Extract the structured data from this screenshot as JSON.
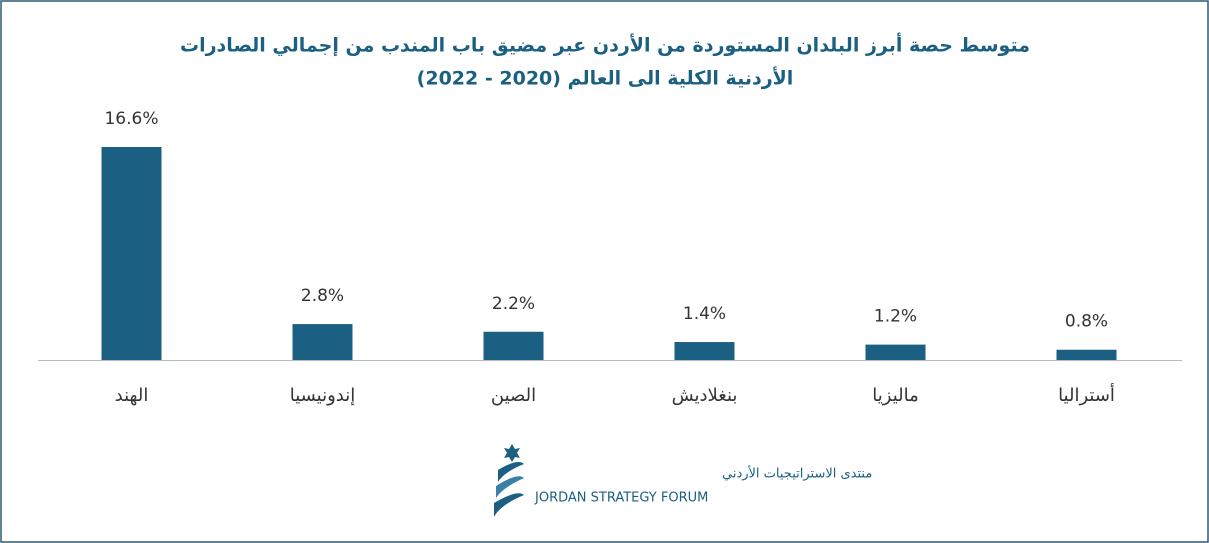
{
  "chart_data": {
    "type": "bar",
    "title": [
      "متوسط حصة أبرز البلدان المستوردة من الأردن عبر مضيق باب المندب من إجمالي الصادرات",
      "الأردنية الكلية الى العالم (2020 - 2022)"
    ],
    "categories": [
      "الهند",
      "إندونيسيا",
      "الصين",
      "بنغلاديش",
      "ماليزيا",
      "أستراليا"
    ],
    "values": [
      16.6,
      2.8,
      2.2,
      1.4,
      1.2,
      0.8
    ],
    "value_labels": [
      "16.6%",
      "2.8%",
      "2.2%",
      "1.4%",
      "1.2%",
      "0.8%"
    ],
    "color": "#1b5f82"
  },
  "logo": {
    "arabic": "منتدى الاستراتيجيات الأردني",
    "english": "JORDAN STRATEGY FORUM"
  }
}
